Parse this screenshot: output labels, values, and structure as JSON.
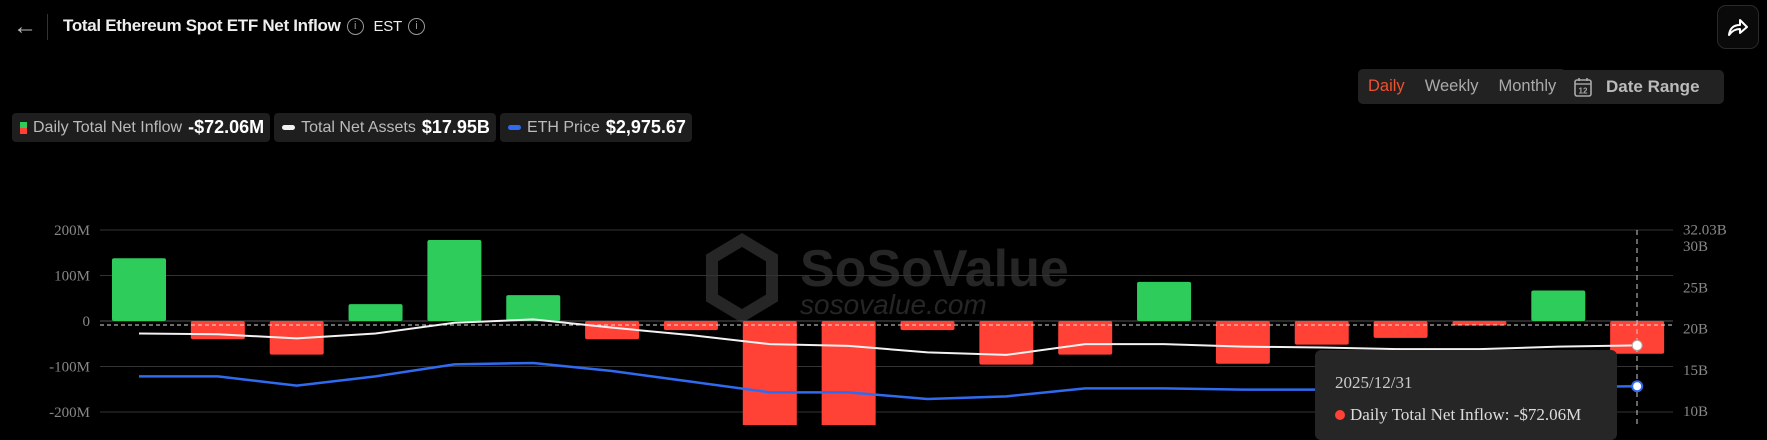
{
  "header": {
    "title": "Total Ethereum Spot ETF Net Inflow",
    "timezone": "EST",
    "icons": {
      "back": "arrow-left-icon",
      "info": "info-circle-icon",
      "share": "share-icon",
      "calendar": "calendar-icon"
    }
  },
  "controls": {
    "periods": [
      {
        "label": "Daily",
        "active": true
      },
      {
        "label": "Weekly",
        "active": false
      },
      {
        "label": "Monthly",
        "active": false
      }
    ],
    "date_range_label": "Date Range",
    "calendar_day": "12"
  },
  "legend": [
    {
      "label": "Daily Total Net Inflow",
      "value": "-$72.06M"
    },
    {
      "label": "Total Net Assets",
      "value": "$17.95B"
    },
    {
      "label": "ETH Price",
      "value": "$2,975.67"
    }
  ],
  "colors": {
    "positive": "#2ecc5a",
    "negative": "#ff4136",
    "assets_line": "#f2f2f2",
    "price_line": "#2f6bf0",
    "active_period": "#f0502e"
  },
  "watermark": {
    "brand": "SoSoValue",
    "site": "sosovalue.com"
  },
  "tooltip": {
    "date": "2025/12/31",
    "label": "Daily Total Net Inflow: -$72.06M"
  },
  "chart_data": {
    "type": "bar",
    "series": [
      {
        "name": "Daily Total Net Inflow",
        "type": "bar",
        "axis": "left",
        "unit": "M USD",
        "values": [
          138,
          -40,
          -74,
          37,
          178,
          57,
          -40,
          -20,
          -250,
          -240,
          -20,
          -96,
          -74,
          86,
          -94,
          -52,
          -37,
          -10,
          67,
          -72.06
        ]
      },
      {
        "name": "Total Net Assets",
        "type": "line",
        "axis": "right",
        "unit": "B USD",
        "values": [
          19.4,
          19.3,
          18.8,
          19.4,
          20.7,
          21.1,
          20.1,
          19.2,
          18.1,
          17.9,
          17.1,
          16.8,
          18.1,
          18.1,
          17.8,
          17.7,
          17.5,
          17.5,
          17.8,
          17.95
        ]
      },
      {
        "name": "ETH Price",
        "type": "line",
        "axis": "hidden",
        "unit": "USD",
        "values": [
          3050,
          3050,
          2980,
          3050,
          3140,
          3150,
          3090,
          3010,
          2930,
          2930,
          2880,
          2900,
          2960,
          2960,
          2950,
          2950,
          2940,
          2960,
          2970,
          2975.67
        ]
      }
    ],
    "left_axis": {
      "ticks": [
        "200M",
        "100M",
        "0",
        "-100M",
        "-200M"
      ],
      "tick_values": [
        200,
        100,
        0,
        -100,
        -200
      ],
      "range": [
        -200,
        200
      ]
    },
    "right_axis": {
      "ticks": [
        "32.03B",
        "30B",
        "25B",
        "20B",
        "15B",
        "10B"
      ],
      "tick_values": [
        32.03,
        30,
        25,
        20,
        15,
        10
      ]
    },
    "grid": true,
    "legend_position": "top-left",
    "highlighted_index": 19
  }
}
